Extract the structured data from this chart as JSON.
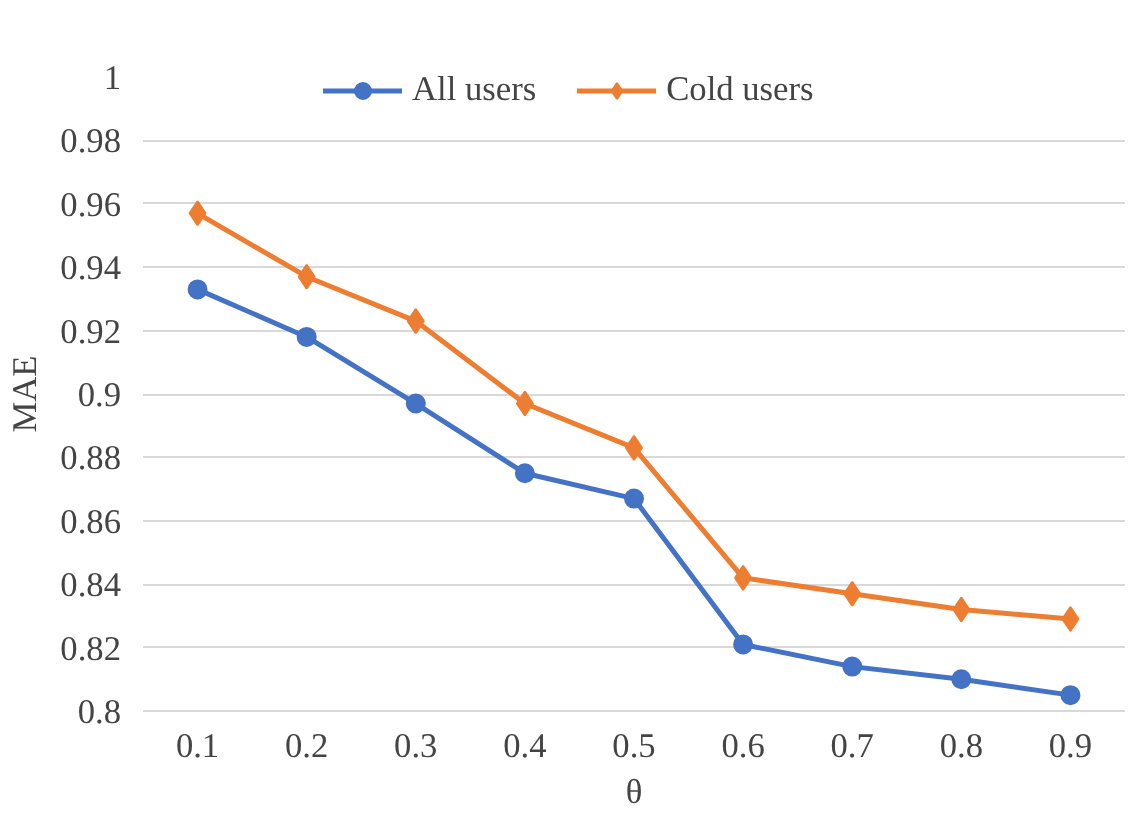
{
  "chart_data": {
    "type": "line",
    "xlabel": "θ",
    "ylabel": "MAE",
    "categories": [
      "0.1",
      "0.2",
      "0.3",
      "0.4",
      "0.5",
      "0.6",
      "0.7",
      "0.8",
      "0.9"
    ],
    "series": [
      {
        "name": "All users",
        "color": "#4472c4",
        "marker": "circle",
        "values": [
          0.933,
          0.918,
          0.897,
          0.875,
          0.867,
          0.821,
          0.814,
          0.81,
          0.805
        ]
      },
      {
        "name": "Cold users",
        "color": "#ed7d31",
        "marker": "diamond",
        "values": [
          0.957,
          0.937,
          0.923,
          0.897,
          0.883,
          0.842,
          0.837,
          0.832,
          0.829
        ]
      }
    ],
    "ylim": [
      0.8,
      1
    ],
    "yticks": [
      0.8,
      0.82,
      0.84,
      0.86,
      0.88,
      0.9,
      0.92,
      0.94,
      0.96,
      0.98,
      1
    ],
    "grid": "y",
    "legend": "top",
    "line_style": "solid"
  }
}
